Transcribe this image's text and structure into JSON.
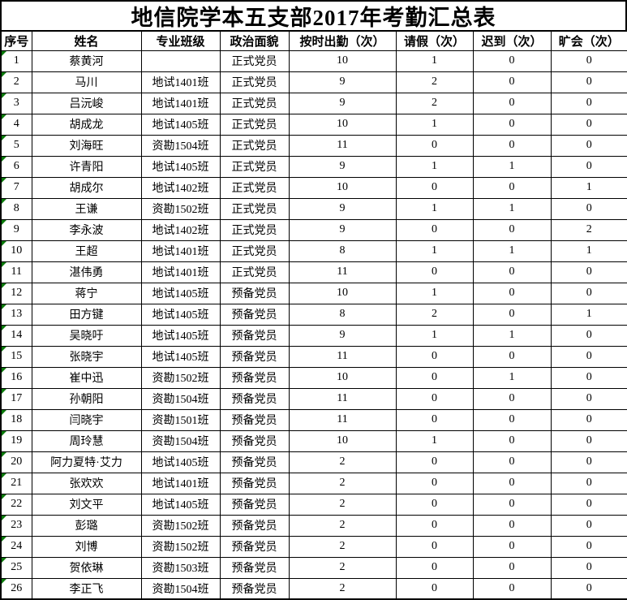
{
  "title": "地信院学本五支部2017年考勤汇总表",
  "colors": {
    "border": "#000000",
    "background": "#ffffff",
    "flag_green": "#0b7a0b"
  },
  "table": {
    "columns": [
      "序号",
      "姓名",
      "专业班级",
      "政治面貌",
      "按时出勤（次）",
      "请假（次）",
      "迟到（次）",
      "旷会（次）"
    ],
    "rows": [
      {
        "no": "1",
        "name": "蔡黄河",
        "class": "",
        "status": "正式党员",
        "on_time": "10",
        "leave": "1",
        "late": "0",
        "absent": "0"
      },
      {
        "no": "2",
        "name": "马川",
        "class": "地试1401班",
        "status": "正式党员",
        "on_time": "9",
        "leave": "2",
        "late": "0",
        "absent": "0"
      },
      {
        "no": "3",
        "name": "吕沅峻",
        "class": "地试1401班",
        "status": "正式党员",
        "on_time": "9",
        "leave": "2",
        "late": "0",
        "absent": "0"
      },
      {
        "no": "4",
        "name": "胡成龙",
        "class": "地试1405班",
        "status": "正式党员",
        "on_time": "10",
        "leave": "1",
        "late": "0",
        "absent": "0"
      },
      {
        "no": "5",
        "name": "刘海旺",
        "class": "资勘1504班",
        "status": "正式党员",
        "on_time": "11",
        "leave": "0",
        "late": "0",
        "absent": "0"
      },
      {
        "no": "6",
        "name": "许青阳",
        "class": "地试1405班",
        "status": "正式党员",
        "on_time": "9",
        "leave": "1",
        "late": "1",
        "absent": "0"
      },
      {
        "no": "7",
        "name": "胡成尔",
        "class": "地试1402班",
        "status": "正式党员",
        "on_time": "10",
        "leave": "0",
        "late": "0",
        "absent": "1"
      },
      {
        "no": "8",
        "name": "王谦",
        "class": "资勘1502班",
        "status": "正式党员",
        "on_time": "9",
        "leave": "1",
        "late": "1",
        "absent": "0"
      },
      {
        "no": "9",
        "name": "李永波",
        "class": "地试1402班",
        "status": "正式党员",
        "on_time": "9",
        "leave": "0",
        "late": "0",
        "absent": "2"
      },
      {
        "no": "10",
        "name": "王超",
        "class": "地试1401班",
        "status": "正式党员",
        "on_time": "8",
        "leave": "1",
        "late": "1",
        "absent": "1"
      },
      {
        "no": "11",
        "name": "湛伟勇",
        "class": "地试1401班",
        "status": "正式党员",
        "on_time": "11",
        "leave": "0",
        "late": "0",
        "absent": "0"
      },
      {
        "no": "12",
        "name": "蒋宁",
        "class": "地试1405班",
        "status": "预备党员",
        "on_time": "10",
        "leave": "1",
        "late": "0",
        "absent": "0"
      },
      {
        "no": "13",
        "name": "田方键",
        "class": "地试1405班",
        "status": "预备党员",
        "on_time": "8",
        "leave": "2",
        "late": "0",
        "absent": "1"
      },
      {
        "no": "14",
        "name": "吴晓吁",
        "class": "地试1405班",
        "status": "预备党员",
        "on_time": "9",
        "leave": "1",
        "late": "1",
        "absent": "0"
      },
      {
        "no": "15",
        "name": "张晓宇",
        "class": "地试1405班",
        "status": "预备党员",
        "on_time": "11",
        "leave": "0",
        "late": "0",
        "absent": "0"
      },
      {
        "no": "16",
        "name": "崔中迅",
        "class": "资勘1502班",
        "status": "预备党员",
        "on_time": "10",
        "leave": "0",
        "late": "1",
        "absent": "0"
      },
      {
        "no": "17",
        "name": "孙朝阳",
        "class": "资勘1504班",
        "status": "预备党员",
        "on_time": "11",
        "leave": "0",
        "late": "0",
        "absent": "0"
      },
      {
        "no": "18",
        "name": "闫晓宇",
        "class": "资勘1501班",
        "status": "预备党员",
        "on_time": "11",
        "leave": "0",
        "late": "0",
        "absent": "0"
      },
      {
        "no": "19",
        "name": "周玲慧",
        "class": "资勘1504班",
        "status": "预备党员",
        "on_time": "10",
        "leave": "1",
        "late": "0",
        "absent": "0"
      },
      {
        "no": "20",
        "name": "阿力夏特·艾力",
        "class": "地试1405班",
        "status": "预备党员",
        "on_time": "2",
        "leave": "0",
        "late": "0",
        "absent": "0"
      },
      {
        "no": "21",
        "name": "张欢欢",
        "class": "地试1401班",
        "status": "预备党员",
        "on_time": "2",
        "leave": "0",
        "late": "0",
        "absent": "0"
      },
      {
        "no": "22",
        "name": "刘文平",
        "class": "地试1405班",
        "status": "预备党员",
        "on_time": "2",
        "leave": "0",
        "late": "0",
        "absent": "0"
      },
      {
        "no": "23",
        "name": "彭璐",
        "class": "资勘1502班",
        "status": "预备党员",
        "on_time": "2",
        "leave": "0",
        "late": "0",
        "absent": "0"
      },
      {
        "no": "24",
        "name": "刘博",
        "class": "资勘1502班",
        "status": "预备党员",
        "on_time": "2",
        "leave": "0",
        "late": "0",
        "absent": "0"
      },
      {
        "no": "25",
        "name": "贺依琳",
        "class": "资勘1503班",
        "status": "预备党员",
        "on_time": "2",
        "leave": "0",
        "late": "0",
        "absent": "0"
      },
      {
        "no": "26",
        "name": "李正飞",
        "class": "资勘1504班",
        "status": "预备党员",
        "on_time": "2",
        "leave": "0",
        "late": "0",
        "absent": "0"
      }
    ]
  }
}
